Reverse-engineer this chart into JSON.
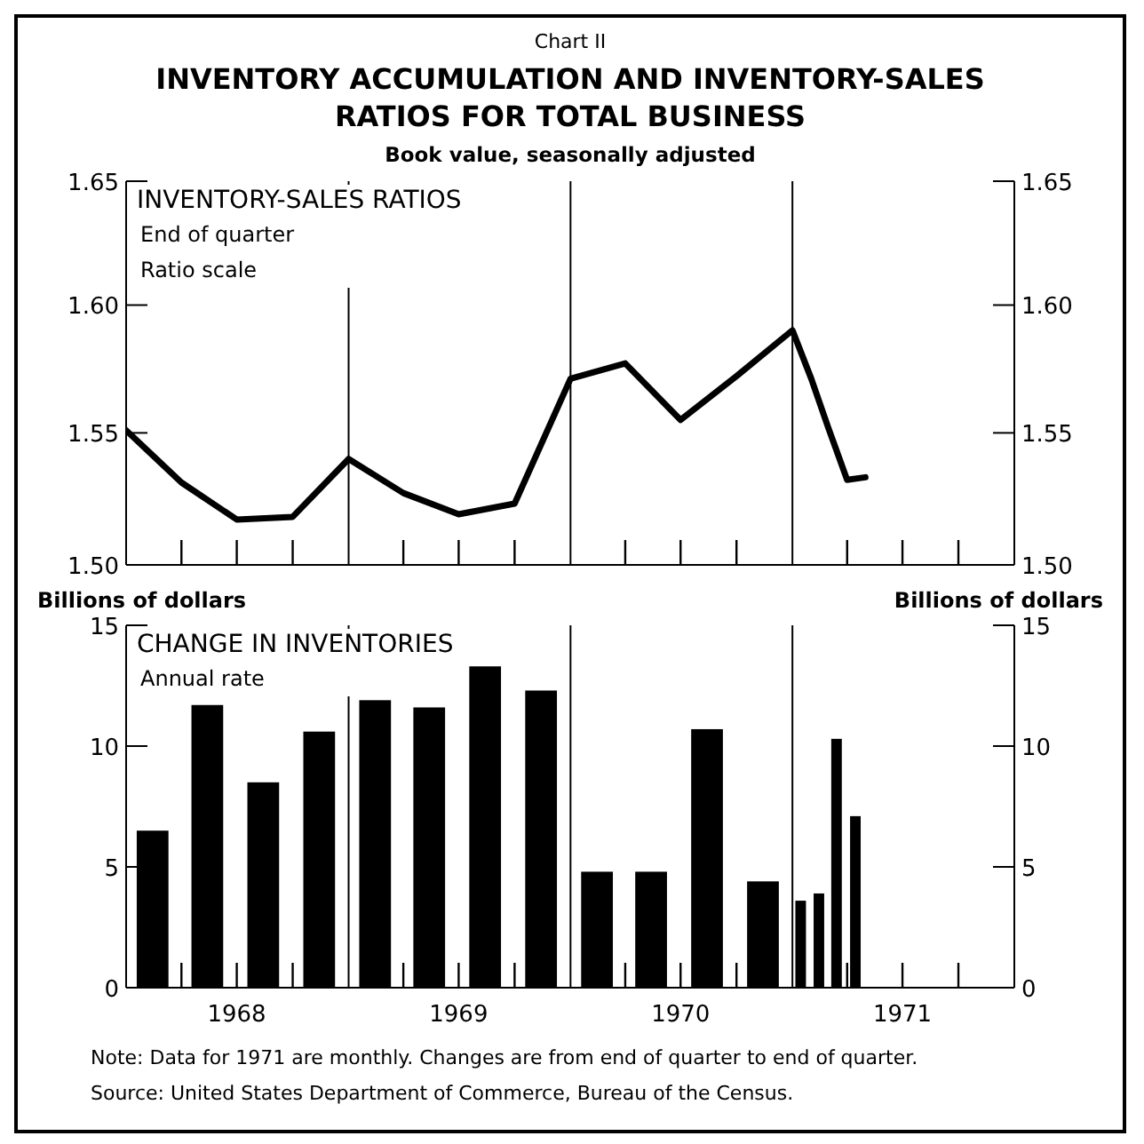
{
  "chart_data": [
    {
      "type": "line",
      "title": "INVENTORY ACCUMULATION AND INVENTORY-SALES RATIOS FOR TOTAL BUSINESS",
      "subtitle": "Book value, seasonally adjusted",
      "annotations": [
        "Chart II",
        "INVENTORY-SALES RATIOS",
        "End of quarter",
        "Ratio scale"
      ],
      "series": [
        {
          "color": "#000000",
          "x": [
            "1968-01-01",
            "1968-04-01",
            "1968-07-01",
            "1968-10-01",
            "1969-01-01",
            "1969-04-01",
            "1969-07-01",
            "1969-10-01",
            "1970-01-01",
            "1970-04-01",
            "1970-07-01",
            "1970-10-01",
            "1971-01-01",
            "1971-02-01",
            "1971-03-01",
            "1971-04-01",
            "1971-05-01"
          ],
          "values": [
            1.551,
            1.531,
            1.517,
            1.518,
            1.54,
            1.527,
            1.519,
            1.523,
            1.571,
            1.577,
            1.555,
            1.572,
            1.59,
            1.571,
            1.552,
            1.532,
            1.533
          ]
        }
      ],
      "log": true,
      "xlim": [
        "1968-01-01",
        "1972-01-01"
      ],
      "xticks": [
        {
          "value": "1968-04-01",
          "label": null
        },
        {
          "value": "1968-07-01",
          "label": null
        },
        {
          "value": "1968-10-01",
          "label": null
        },
        {
          "value": "1969-04-01",
          "label": null
        },
        {
          "value": "1969-07-01",
          "label": null
        },
        {
          "value": "1969-10-01",
          "label": null
        },
        {
          "value": "1970-04-01",
          "label": null
        },
        {
          "value": "1970-07-01",
          "label": null
        },
        {
          "value": "1970-10-01",
          "label": null
        },
        {
          "value": "1971-04-01",
          "label": null
        },
        {
          "value": "1971-07-01",
          "label": null
        },
        {
          "value": "1971-10-01",
          "label": null
        }
      ],
      "ylim": [
        1.5,
        1.65
      ],
      "yticks": [
        {
          "value": 1.5,
          "label": "1.50"
        },
        {
          "value": 1.55,
          "label": "1.55"
        },
        {
          "value": 1.6,
          "label": "1.60"
        },
        {
          "value": 1.65,
          "label": "1.65"
        }
      ],
      "y2lim": [
        1.5,
        1.65
      ],
      "y2ticks": [
        {
          "value": 1.5,
          "label": "1.50"
        },
        {
          "value": 1.55,
          "label": "1.55"
        },
        {
          "value": 1.6,
          "label": "1.60"
        },
        {
          "value": 1.65,
          "label": "1.65"
        }
      ],
      "tick_labels": "y",
      "ref_lines": [
        {
          "axis": "x",
          "value": "1969-01-01"
        },
        {
          "axis": "x",
          "value": "1970-01-01"
        },
        {
          "axis": "x",
          "value": "1971-01-01"
        }
      ]
    },
    {
      "type": "bar",
      "ylabel": "Billions of dollars",
      "y2label": "Billions of dollars",
      "annotations": [
        "CHANGE IN INVENTORIES",
        "Annual rate",
        "Note: Data for 1971 are monthly. Changes are from end of quarter to end of quarter.",
        "Source: United States Department of Commerce, Bureau of the Census."
      ],
      "series": [
        {
          "color": "#000000",
          "x": [
            "1968-02-15",
            "1968-05-15",
            "1968-08-15",
            "1968-11-15",
            "1969-02-15",
            "1969-05-15",
            "1969-08-15",
            "1969-11-15",
            "1970-02-15",
            "1970-05-15",
            "1970-08-15",
            "1970-11-15"
          ],
          "values": [
            6.5,
            11.7,
            8.5,
            10.6,
            11.9,
            11.6,
            13.3,
            12.3,
            4.8,
            4.8,
            10.7,
            4.4
          ]
        },
        {
          "color": "#000000",
          "x": [
            "1971-01-16",
            "1971-02-15",
            "1971-03-16",
            "1971-04-16"
          ],
          "values": [
            3.6,
            3.9,
            10.3,
            7.1
          ]
        }
      ],
      "xlim": [
        "1968-01-01",
        "1972-01-01"
      ],
      "xticks": [
        {
          "value": "1968-04-01",
          "label": null
        },
        {
          "value": "1968-07-01",
          "label": "1968"
        },
        {
          "value": "1968-10-01",
          "label": null
        },
        {
          "value": "1969-04-01",
          "label": null
        },
        {
          "value": "1969-07-01",
          "label": "1969"
        },
        {
          "value": "1969-10-01",
          "label": null
        },
        {
          "value": "1970-04-01",
          "label": null
        },
        {
          "value": "1970-07-01",
          "label": "1970"
        },
        {
          "value": "1970-10-01",
          "label": null
        },
        {
          "value": "1971-04-01",
          "label": null
        },
        {
          "value": "1971-07-01",
          "label": "1971"
        },
        {
          "value": "1971-10-01",
          "label": null
        }
      ],
      "ylim": [
        0,
        15
      ],
      "yticks": [
        0,
        5,
        10,
        15
      ],
      "y2lim": [
        0,
        15
      ],
      "y2ticks": [
        0,
        5,
        10,
        15
      ],
      "ref_lines": [
        {
          "axis": "x",
          "value": "1969-01-01"
        },
        {
          "axis": "x",
          "value": "1970-01-01"
        },
        {
          "axis": "x",
          "value": "1971-01-01"
        }
      ]
    }
  ]
}
